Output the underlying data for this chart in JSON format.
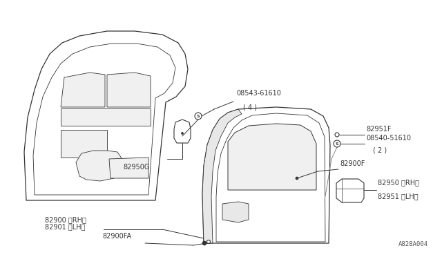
{
  "bg_color": "#ffffff",
  "line_color": "#333333",
  "text_color": "#333333",
  "watermark": "A828A004",
  "labels": {
    "part1": "08543-61610",
    "part1_qty": "( 4 )",
    "part2": "82950G",
    "part3": "82900 〈RH〉",
    "part4": "82901 〈LH〉",
    "part5": "82900FA",
    "part6": "82951F",
    "part7": "08540-51610",
    "part7_qty": "( 2 )",
    "part8": "82900F",
    "part9": "82950 〈RH〉",
    "part10": "82951 〈LH〉"
  },
  "font_size_label": 7.0,
  "font_size_watermark": 6.5
}
